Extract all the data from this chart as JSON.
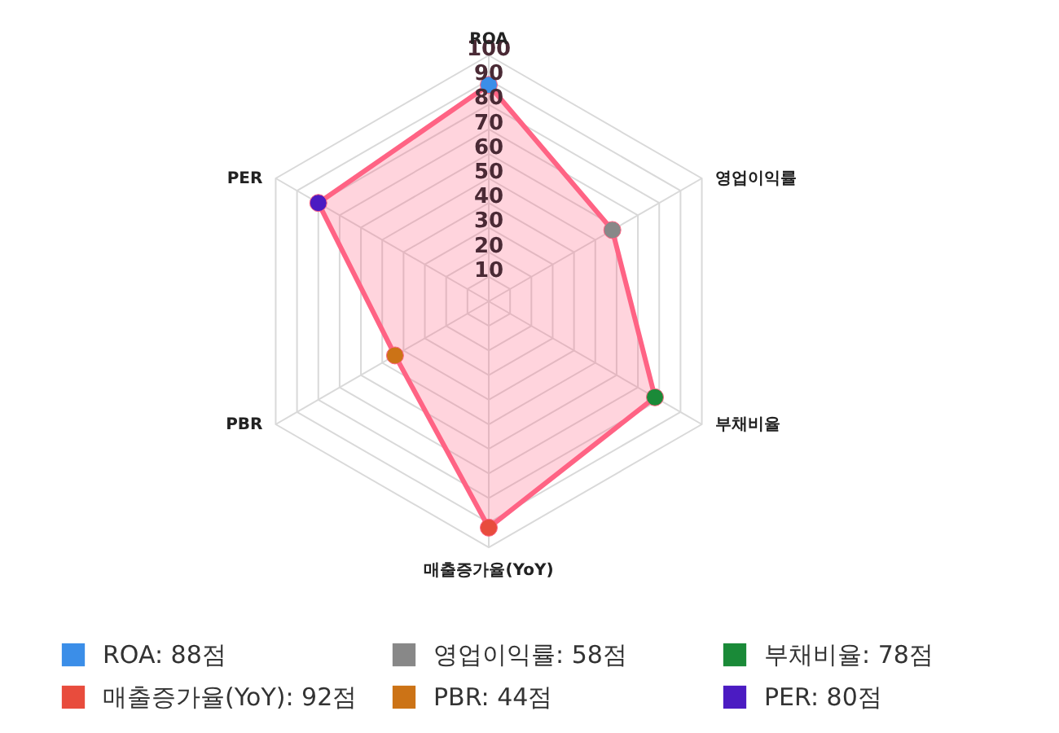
{
  "chart_data": {
    "type": "radar",
    "categories": [
      "ROA",
      "영업이익률",
      "부채비율",
      "매출증가율(YoY)",
      "PBR",
      "PER"
    ],
    "series": [
      {
        "type": "area",
        "color": "#ff6384",
        "values": [
          88,
          58,
          78,
          92,
          44,
          80
        ],
        "colors": [
          "#3b8ee8",
          "#888888",
          "#1a8a38",
          "#e84c3d",
          "#cc7316",
          "#4b1bc2"
        ],
        "line_style": "solid"
      }
    ],
    "ylim": [
      0,
      100
    ],
    "yticks": [
      10,
      20,
      30,
      40,
      50,
      60,
      70,
      80,
      90,
      100
    ],
    "grid": true,
    "annotations": [
      "ROA: 88점",
      "영업이익률: 58점",
      "부채비율: 78점",
      "매출증가율(YoY): 92점",
      "PBR: 44점",
      "PER: 80점"
    ]
  }
}
